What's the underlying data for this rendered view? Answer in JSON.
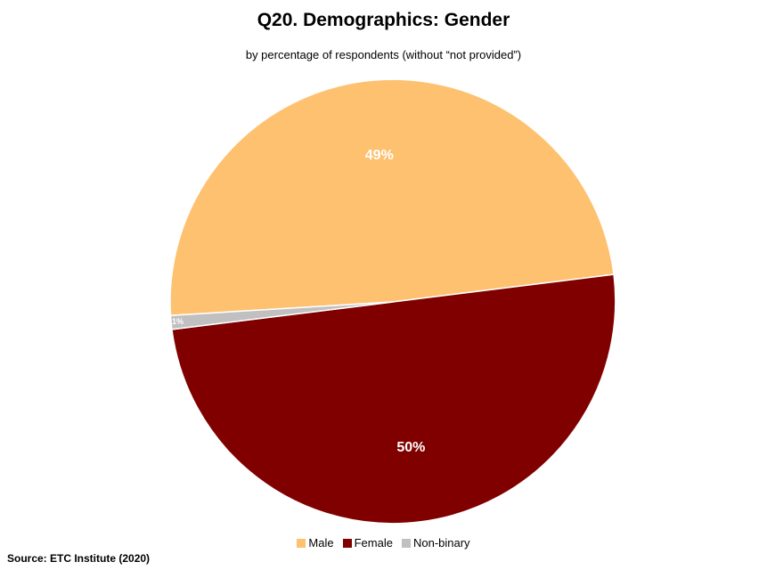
{
  "chart_data": {
    "type": "pie",
    "title": "Q20. Demographics: Gender",
    "subtitle": "by percentage of respondents (without “not provided”)",
    "slices": [
      {
        "name": "Male",
        "value": 49,
        "label": "49%",
        "color": "#fdc170"
      },
      {
        "name": "Female",
        "value": 50,
        "label": "50%",
        "color": "#800000"
      },
      {
        "name": "Non-binary",
        "value": 1,
        "label": "1%",
        "color": "#c0c0c0"
      }
    ],
    "legend_position": "bottom",
    "source": "Source:  ETC Institute (2020)"
  }
}
